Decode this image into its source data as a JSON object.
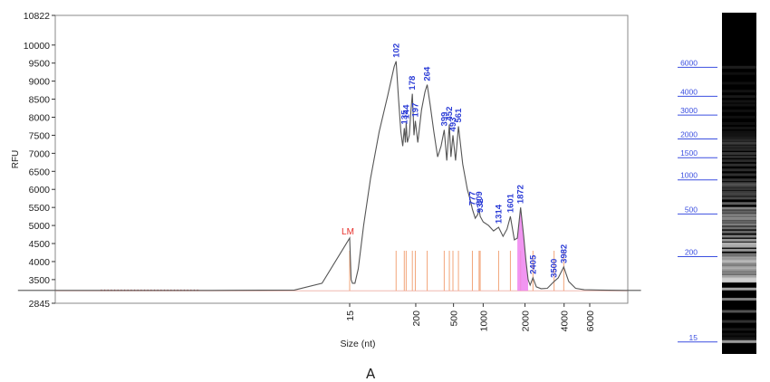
{
  "caption": "A",
  "colors": {
    "trace": "#555555",
    "peak_label": "#2a3bd6",
    "lower_marker": "#e8302b",
    "peak_tick": "#f2a57a",
    "highlight": "#ee82ee",
    "axis": "#333333",
    "ladder_line": "#3b4fe0",
    "gel_background": "#000000"
  },
  "chart_data": [
    {
      "type": "line",
      "title": "",
      "xlabel": "Size (nt)",
      "ylabel": "RFU",
      "ylim": [
        2845,
        10822
      ],
      "x_scale": "nonlinear (electrophoresis size)",
      "y_ticks": [
        2845,
        3500,
        4000,
        4500,
        5000,
        5500,
        6000,
        6500,
        7000,
        7500,
        8000,
        8500,
        9000,
        9500,
        10000,
        10822
      ],
      "x_ticks": [
        15,
        200,
        500,
        1000,
        2000,
        4000,
        6000
      ],
      "x_tick_labels": [
        "15",
        "200",
        "500",
        "1000",
        "2000",
        "4000",
        "6000"
      ],
      "x_axis_sizes": [
        {
          "size": 15,
          "pos": 0.0
        },
        {
          "size": 50,
          "pos": 0.1
        },
        {
          "size": 100,
          "pos": 0.17
        },
        {
          "size": 200,
          "pos": 0.245
        },
        {
          "size": 500,
          "pos": 0.385
        },
        {
          "size": 1000,
          "pos": 0.495
        },
        {
          "size": 1500,
          "pos": 0.58
        },
        {
          "size": 2000,
          "pos": 0.65
        },
        {
          "size": 3000,
          "pos": 0.715
        },
        {
          "size": 4000,
          "pos": 0.795
        },
        {
          "size": 6000,
          "pos": 0.89
        },
        {
          "size": 9000,
          "pos": 1.08
        }
      ],
      "grid": false,
      "legend": "none",
      "lower_marker": {
        "label": "LM",
        "size": 15,
        "rfu": 4650
      },
      "peaks": [
        {
          "label": "102",
          "size": 102,
          "rfu": 9550
        },
        {
          "label": "135",
          "size": 135,
          "rfu": 7700
        },
        {
          "label": "144",
          "size": 144,
          "rfu": 7850
        },
        {
          "label": "178",
          "size": 178,
          "rfu": 8650
        },
        {
          "label": "197",
          "size": 197,
          "rfu": 7900
        },
        {
          "label": "264",
          "size": 264,
          "rfu": 8900
        },
        {
          "label": "399",
          "size": 399,
          "rfu": 7650
        },
        {
          "label": "452",
          "size": 452,
          "rfu": 7800
        },
        {
          "label": "493",
          "size": 493,
          "rfu": 7500
        },
        {
          "label": "561",
          "size": 561,
          "rfu": 7750
        },
        {
          "label": "777",
          "size": 777,
          "rfu": 5450
        },
        {
          "label": "909",
          "size": 909,
          "rfu": 5450
        },
        {
          "label": "932",
          "size": 932,
          "rfu": 5250
        },
        {
          "label": "1314",
          "size": 1314,
          "rfu": 4950
        },
        {
          "label": "1601",
          "size": 1601,
          "rfu": 5250
        },
        {
          "label": "1872",
          "size": 1872,
          "rfu": 5500
        },
        {
          "label": "2405",
          "size": 2405,
          "rfu": 3550
        },
        {
          "label": "3500",
          "size": 3500,
          "rfu": 3450
        },
        {
          "label": "3982",
          "size": 3982,
          "rfu": 3850
        }
      ],
      "trace": [
        {
          "size": 3,
          "rfu": 3200
        },
        {
          "size": 6,
          "rfu": 3200
        },
        {
          "size": 10,
          "rfu": 3200
        },
        {
          "size": 13,
          "rfu": 3210
        },
        {
          "size": 14,
          "rfu": 3400
        },
        {
          "size": 15,
          "rfu": 4650
        },
        {
          "size": 16,
          "rfu": 3500
        },
        {
          "size": 17,
          "rfu": 3400
        },
        {
          "size": 19,
          "rfu": 3400
        },
        {
          "size": 22,
          "rfu": 3800
        },
        {
          "size": 28,
          "rfu": 5000
        },
        {
          "size": 38,
          "rfu": 6300
        },
        {
          "size": 55,
          "rfu": 7600
        },
        {
          "size": 75,
          "rfu": 8600
        },
        {
          "size": 95,
          "rfu": 9400
        },
        {
          "size": 102,
          "rfu": 9550
        },
        {
          "size": 110,
          "rfu": 8600
        },
        {
          "size": 120,
          "rfu": 7600
        },
        {
          "size": 128,
          "rfu": 7200
        },
        {
          "size": 135,
          "rfu": 7700
        },
        {
          "size": 140,
          "rfu": 7300
        },
        {
          "size": 144,
          "rfu": 7850
        },
        {
          "size": 150,
          "rfu": 7300
        },
        {
          "size": 160,
          "rfu": 7500
        },
        {
          "size": 170,
          "rfu": 8200
        },
        {
          "size": 178,
          "rfu": 8650
        },
        {
          "size": 188,
          "rfu": 7500
        },
        {
          "size": 197,
          "rfu": 7900
        },
        {
          "size": 210,
          "rfu": 7300
        },
        {
          "size": 230,
          "rfu": 8200
        },
        {
          "size": 250,
          "rfu": 8700
        },
        {
          "size": 264,
          "rfu": 8900
        },
        {
          "size": 285,
          "rfu": 8300
        },
        {
          "size": 310,
          "rfu": 7600
        },
        {
          "size": 340,
          "rfu": 6900
        },
        {
          "size": 370,
          "rfu": 7200
        },
        {
          "size": 399,
          "rfu": 7650
        },
        {
          "size": 425,
          "rfu": 6800
        },
        {
          "size": 452,
          "rfu": 7800
        },
        {
          "size": 470,
          "rfu": 6900
        },
        {
          "size": 493,
          "rfu": 7500
        },
        {
          "size": 525,
          "rfu": 6800
        },
        {
          "size": 561,
          "rfu": 7750
        },
        {
          "size": 620,
          "rfu": 6700
        },
        {
          "size": 690,
          "rfu": 6000
        },
        {
          "size": 740,
          "rfu": 5700
        },
        {
          "size": 777,
          "rfu": 5450
        },
        {
          "size": 830,
          "rfu": 5200
        },
        {
          "size": 880,
          "rfu": 5300
        },
        {
          "size": 909,
          "rfu": 5450
        },
        {
          "size": 932,
          "rfu": 5250
        },
        {
          "size": 1000,
          "rfu": 5100
        },
        {
          "size": 1100,
          "rfu": 5000
        },
        {
          "size": 1200,
          "rfu": 4850
        },
        {
          "size": 1314,
          "rfu": 4950
        },
        {
          "size": 1420,
          "rfu": 4700
        },
        {
          "size": 1520,
          "rfu": 4900
        },
        {
          "size": 1601,
          "rfu": 5250
        },
        {
          "size": 1700,
          "rfu": 4600
        },
        {
          "size": 1780,
          "rfu": 4650
        },
        {
          "size": 1872,
          "rfu": 5500
        },
        {
          "size": 1960,
          "rfu": 4700
        },
        {
          "size": 2050,
          "rfu": 4000
        },
        {
          "size": 2150,
          "rfu": 3500
        },
        {
          "size": 2250,
          "rfu": 3350
        },
        {
          "size": 2405,
          "rfu": 3550
        },
        {
          "size": 2600,
          "rfu": 3300
        },
        {
          "size": 2900,
          "rfu": 3250
        },
        {
          "size": 3200,
          "rfu": 3260
        },
        {
          "size": 3500,
          "rfu": 3450
        },
        {
          "size": 3700,
          "rfu": 3550
        },
        {
          "size": 3982,
          "rfu": 3850
        },
        {
          "size": 4300,
          "rfu": 3450
        },
        {
          "size": 4800,
          "rfu": 3260
        },
        {
          "size": 5500,
          "rfu": 3220
        },
        {
          "size": 6500,
          "rfu": 3210
        },
        {
          "size": 8000,
          "rfu": 3200
        },
        {
          "size": 9000,
          "rfu": 3200
        }
      ]
    },
    {
      "type": "other",
      "title": "",
      "ladder_labels": [
        "6000",
        "4000",
        "3000",
        "2000",
        "1500",
        "1000",
        "500",
        "200",
        "15"
      ],
      "ladder_positions": [
        0.16,
        0.245,
        0.3,
        0.37,
        0.425,
        0.49,
        0.59,
        0.715,
        0.965
      ]
    }
  ]
}
